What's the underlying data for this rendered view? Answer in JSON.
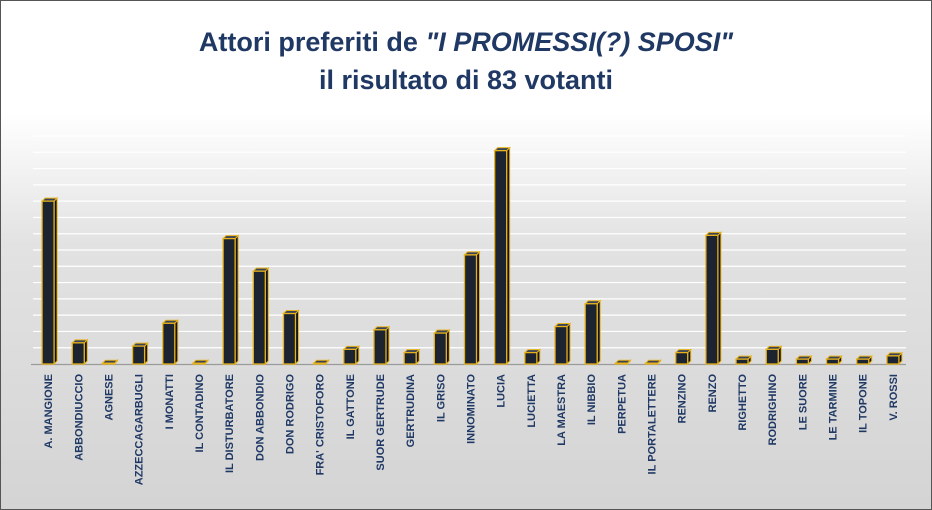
{
  "chart_data": {
    "type": "bar",
    "title_line1_prefix": "Attori preferiti de ",
    "title_line1_italic": "\"I PROMESSI(?) SPOSI\"",
    "title_line2": "il risultato di 83 votanti",
    "xlabel": "",
    "ylabel": "",
    "ylim": [
      0,
      14
    ],
    "grid": true,
    "legend": "none",
    "colors": {
      "bar_fill": "#1c2331",
      "bar_edge": "#e8b21a",
      "title": "#1f3864",
      "tick_label": "#1f3864"
    },
    "categories": [
      "A. MANGIONE",
      "ABBONDIUCCIO",
      "AGNESE",
      "AZZECCAGARBUGLI",
      "I MONATTI",
      "IL CONTADINO",
      "IL DISTURBATORE",
      "DON ABBONDIO",
      "DON RODRIGO",
      "FRA' CRISTOFORO",
      "IL GATTONE",
      "SUOR GERTRUDE",
      "GERTRUDINA",
      "IL GRISO",
      "INNOMINATO",
      "LUCIA",
      "LUCIETTA",
      "LA MAESTRA",
      "IL NIBBIO",
      "PERPETUA",
      "IL PORTALETTERE",
      "RENZINO",
      "RENZO",
      "RIGHETTO",
      "RODRIGHINO",
      "LE SUORE",
      "LE TARMINE",
      "IL TOPONE",
      "V. ROSSI"
    ],
    "values": [
      10,
      1.3,
      0,
      1.1,
      2.5,
      0,
      7.7,
      5.7,
      3.1,
      0,
      0.9,
      2.1,
      0.7,
      1.9,
      6.7,
      13.1,
      0.7,
      2.3,
      3.7,
      0,
      0,
      0.7,
      7.9,
      0.3,
      0.9,
      0.3,
      0.3,
      0.3,
      0.5
    ]
  }
}
